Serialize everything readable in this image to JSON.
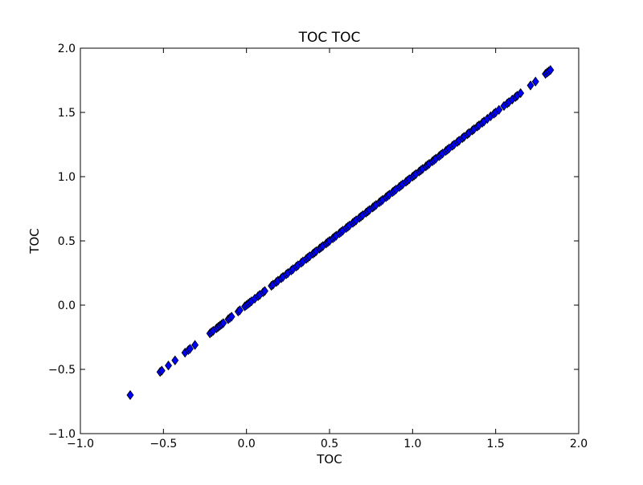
{
  "chart_data": {
    "type": "scatter",
    "title": "TOC TOC",
    "xlabel": "TOC",
    "ylabel": "TOC",
    "xlim": [
      -1.0,
      2.0
    ],
    "ylim": [
      -1.0,
      2.0
    ],
    "xticks": [
      -1.0,
      -0.5,
      0.0,
      0.5,
      1.0,
      1.5,
      2.0
    ],
    "yticks": [
      -1.0,
      -0.5,
      0.0,
      0.5,
      1.0,
      1.5,
      2.0
    ],
    "xtick_labels": [
      "−1.0",
      "−0.5",
      "0.0",
      "0.5",
      "1.0",
      "1.5",
      "2.0"
    ],
    "ytick_labels": [
      "−1.0",
      "−0.5",
      "0.0",
      "0.5",
      "1.0",
      "1.5",
      "2.0"
    ],
    "grid": false,
    "legend": "none",
    "marker": "diamond",
    "marker_color": "#0000ff",
    "marker_edge_color": "#000000",
    "series": [
      {
        "x": [
          -0.7,
          -0.52,
          -0.51,
          -0.47,
          -0.43,
          -0.37,
          -0.35,
          -0.34,
          -0.31,
          -0.22,
          -0.21,
          -0.2,
          -0.18,
          -0.17,
          -0.16,
          -0.15,
          -0.14,
          -0.11,
          -0.1,
          -0.09,
          -0.05,
          -0.04,
          -0.01,
          0.0,
          0.01,
          0.02,
          0.03,
          0.05,
          0.07,
          0.08,
          0.1,
          0.11,
          0.15,
          0.16,
          0.18,
          0.19,
          0.21,
          0.22,
          0.24,
          0.25,
          0.27,
          0.28,
          0.3,
          0.31,
          0.33,
          0.34,
          0.36,
          0.37,
          0.38,
          0.4,
          0.41,
          0.42,
          0.44,
          0.45,
          0.46,
          0.48,
          0.49,
          0.5,
          0.52,
          0.53,
          0.54,
          0.56,
          0.57,
          0.58,
          0.6,
          0.61,
          0.62,
          0.64,
          0.65,
          0.66,
          0.68,
          0.69,
          0.7,
          0.72,
          0.73,
          0.74,
          0.76,
          0.77,
          0.78,
          0.8,
          0.81,
          0.82,
          0.84,
          0.85,
          0.86,
          0.88,
          0.89,
          0.9,
          0.92,
          0.93,
          0.94,
          0.96,
          0.97,
          0.98,
          1.0,
          1.01,
          1.02,
          1.04,
          1.05,
          1.06,
          1.08,
          1.09,
          1.1,
          1.12,
          1.13,
          1.14,
          1.16,
          1.17,
          1.18,
          1.2,
          1.21,
          1.22,
          1.24,
          1.25,
          1.27,
          1.28,
          1.3,
          1.31,
          1.33,
          1.34,
          1.36,
          1.37,
          1.39,
          1.4,
          1.42,
          1.43,
          1.45,
          1.47,
          1.49,
          1.5,
          1.52,
          1.55,
          1.57,
          1.58,
          1.6,
          1.62,
          1.63,
          1.65,
          1.71,
          1.74,
          1.8,
          1.81,
          1.82,
          1.83
        ],
        "y": [
          -0.7,
          -0.52,
          -0.51,
          -0.47,
          -0.43,
          -0.37,
          -0.35,
          -0.34,
          -0.31,
          -0.22,
          -0.21,
          -0.2,
          -0.18,
          -0.17,
          -0.16,
          -0.15,
          -0.14,
          -0.11,
          -0.1,
          -0.09,
          -0.05,
          -0.04,
          -0.01,
          0.0,
          0.01,
          0.02,
          0.03,
          0.05,
          0.07,
          0.08,
          0.1,
          0.11,
          0.15,
          0.16,
          0.18,
          0.19,
          0.21,
          0.22,
          0.24,
          0.25,
          0.27,
          0.28,
          0.3,
          0.31,
          0.33,
          0.34,
          0.36,
          0.37,
          0.38,
          0.4,
          0.41,
          0.42,
          0.44,
          0.45,
          0.46,
          0.48,
          0.49,
          0.5,
          0.52,
          0.53,
          0.54,
          0.56,
          0.57,
          0.58,
          0.6,
          0.61,
          0.62,
          0.64,
          0.65,
          0.66,
          0.68,
          0.69,
          0.7,
          0.72,
          0.73,
          0.74,
          0.76,
          0.77,
          0.78,
          0.8,
          0.81,
          0.82,
          0.84,
          0.85,
          0.86,
          0.88,
          0.89,
          0.9,
          0.92,
          0.93,
          0.94,
          0.96,
          0.97,
          0.98,
          1.0,
          1.01,
          1.02,
          1.04,
          1.05,
          1.06,
          1.08,
          1.09,
          1.1,
          1.12,
          1.13,
          1.14,
          1.16,
          1.17,
          1.18,
          1.2,
          1.21,
          1.22,
          1.24,
          1.25,
          1.27,
          1.28,
          1.3,
          1.31,
          1.33,
          1.34,
          1.36,
          1.37,
          1.39,
          1.4,
          1.42,
          1.43,
          1.45,
          1.47,
          1.49,
          1.5,
          1.52,
          1.55,
          1.57,
          1.58,
          1.6,
          1.62,
          1.63,
          1.65,
          1.71,
          1.74,
          1.8,
          1.81,
          1.82,
          1.83
        ]
      }
    ]
  }
}
